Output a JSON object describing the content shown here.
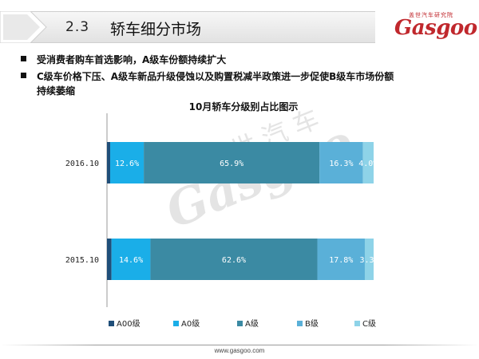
{
  "header": {
    "section_number": "2.3",
    "section_title": "轿车细分市场",
    "logo_sub": "盖世汽车研究院",
    "logo_word": "Gasgoo"
  },
  "bullets": [
    "受消费者购车首选影响，A级车份额持续扩大",
    "C级车价格下压、A级车新品升级侵蚀以及购置税减半政策进一步促使B级车市场份额",
    "持续萎缩"
  ],
  "watermark": {
    "cn": "盖世汽车",
    "word": "Gasgoo"
  },
  "footer": {
    "url": "www.gasgoo.com"
  },
  "chart_data": {
    "type": "bar",
    "orientation": "horizontal",
    "stacked": true,
    "percent_stacked": true,
    "title": "10月轿车分级别占比图示",
    "categories": [
      "2016.10",
      "2015.10"
    ],
    "series": [
      {
        "name": "A00级",
        "color": "#1f4e79",
        "values": [
          1.2,
          1.7
        ],
        "labels": [
          "",
          ""
        ]
      },
      {
        "name": "A0级",
        "color": "#1aaee8",
        "values": [
          12.6,
          14.6
        ],
        "labels": [
          "12.6%",
          "14.6%"
        ]
      },
      {
        "name": "A级",
        "color": "#3b8aa3",
        "values": [
          65.9,
          62.6
        ],
        "labels": [
          "65.9%",
          "62.6%"
        ]
      },
      {
        "name": "B级",
        "color": "#5ab0d8",
        "values": [
          16.3,
          17.8
        ],
        "labels": [
          "16.3%",
          "17.8%"
        ]
      },
      {
        "name": "C级",
        "color": "#8ed3e8",
        "values": [
          4.0,
          3.3
        ],
        "labels": [
          "4.0%",
          "3.3%"
        ]
      }
    ],
    "xlim": [
      0,
      100
    ],
    "legend_position": "bottom",
    "grid": false
  }
}
